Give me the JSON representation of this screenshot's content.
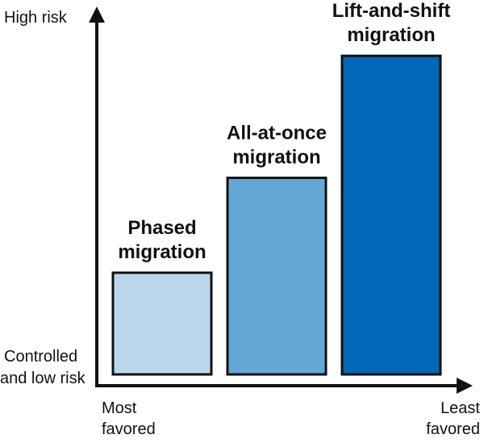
{
  "chart_data": {
    "type": "bar",
    "categories": [
      [
        "Phased",
        "migration"
      ],
      [
        "All-at-once",
        "migration"
      ],
      [
        "Lift-and-shift",
        "migration"
      ]
    ],
    "values": [
      30,
      58,
      94
    ],
    "ylim": [
      0,
      100
    ],
    "y_axis_top_label": "High risk",
    "y_axis_bottom_label": [
      "Controlled",
      "and low risk"
    ],
    "x_axis_left_label": [
      "Most",
      "favored"
    ],
    "x_axis_right_label": [
      "Least",
      "favored"
    ],
    "colors": [
      "#b9d7eb",
      "#64a7d6",
      "#0068b6"
    ],
    "stroke_color": "#111111",
    "grid": false
  }
}
